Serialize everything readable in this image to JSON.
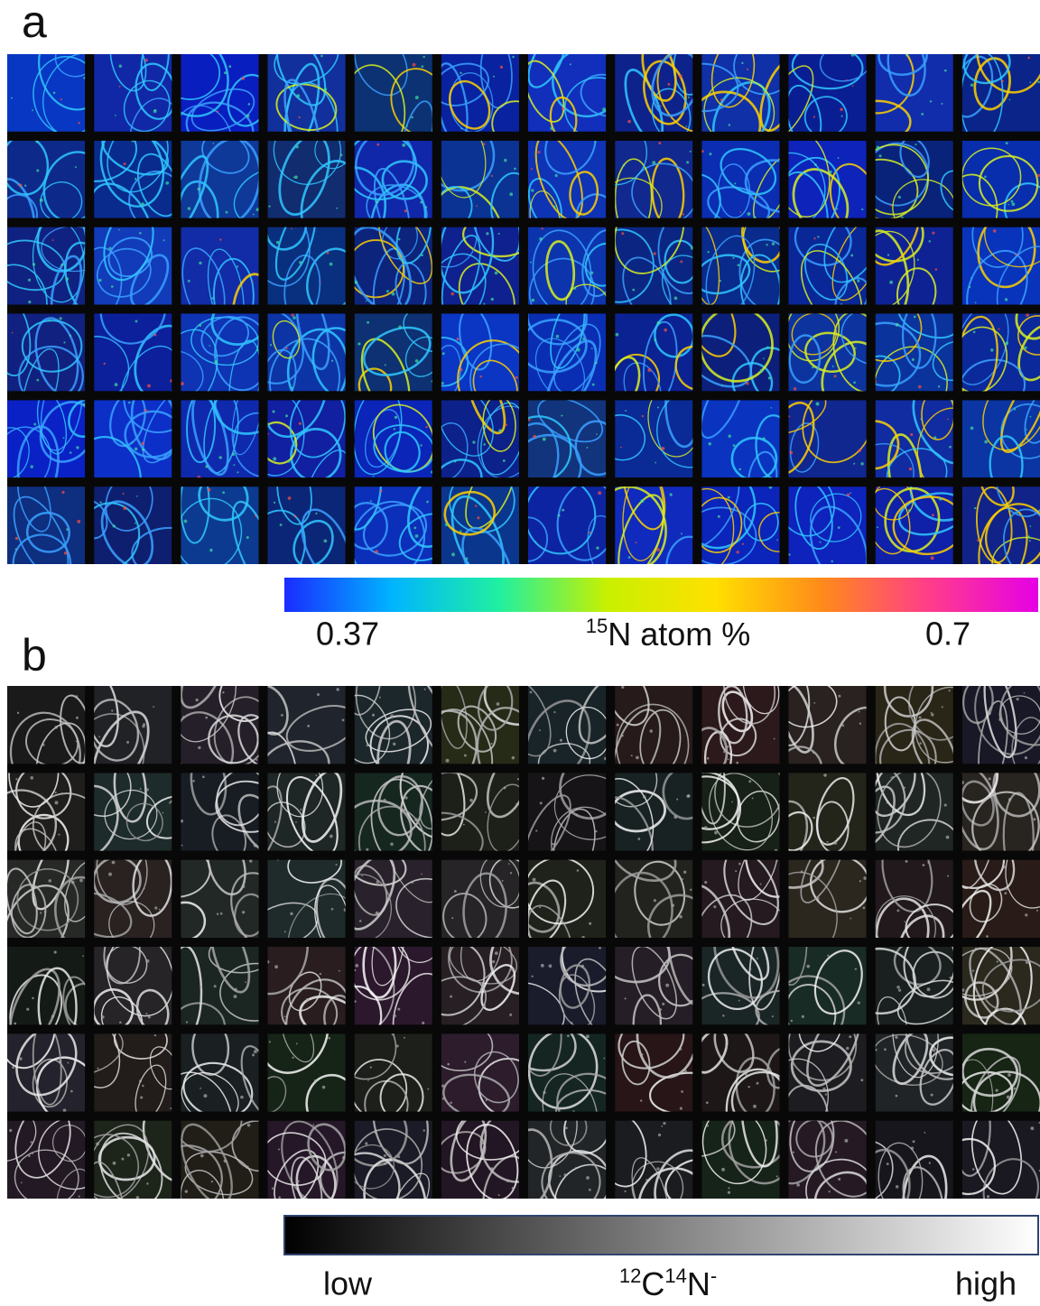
{
  "panels": [
    {
      "label": "a",
      "colorbar": {
        "colors": [
          "#1a2cff",
          "#00b4ff",
          "#20f0a0",
          "#c8f000",
          "#ffe000",
          "#ff8a1a",
          "#ff3c8c",
          "#e600e6"
        ],
        "min_label": "0.37",
        "max_label": "0.7",
        "title_parts": [
          {
            "text": "15",
            "superscript": true
          },
          {
            "text": "N atom %",
            "superscript": false
          }
        ]
      }
    },
    {
      "label": "b",
      "colorbar": {
        "colors": [
          "#000000",
          "#ffffff"
        ],
        "min_label": "low",
        "max_label": "high",
        "title_parts": [
          {
            "text": "12",
            "superscript": true
          },
          {
            "text": "C",
            "superscript": false
          },
          {
            "text": "14",
            "superscript": true
          },
          {
            "text": "N",
            "superscript": false
          },
          {
            "text": "-",
            "superscript": true
          }
        ]
      }
    }
  ]
}
